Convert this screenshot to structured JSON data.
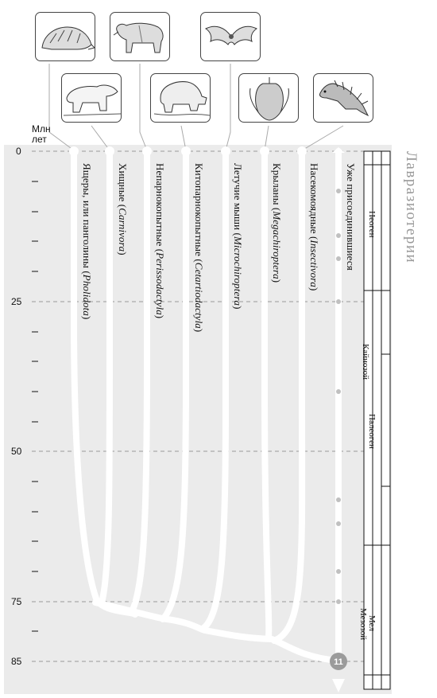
{
  "axis": {
    "title_line1": "Млн",
    "title_line2": "лет",
    "ticks": [
      "0",
      "25",
      "50",
      "75",
      "85"
    ]
  },
  "clade_title": "Лавразиотерии",
  "branches": [
    {
      "name": "Ящеры, или панголины",
      "latin": "Pholidota",
      "icon": "pangolin-icon"
    },
    {
      "name": "Хищные",
      "latin": "Carnivora",
      "icon": "polar-bear-icon"
    },
    {
      "name": "Непарнокопытные",
      "latin": "Perissodactyla",
      "icon": "tapir-icon"
    },
    {
      "name": "Китопарнокопытные",
      "latin": "Cetartiodactyla",
      "icon": "hippo-icon"
    },
    {
      "name": "Летучие мыши",
      "latin": "Microchiroptera",
      "icon": "bat-icon"
    },
    {
      "name": "Крыланы",
      "latin": "Megachiroptera",
      "icon": "fruit-bat-icon"
    },
    {
      "name": "Насекомоядные",
      "latin": "Insectivora",
      "icon": "hedgehog-icon"
    },
    {
      "name": "Уже присоединившиеся",
      "latin": "",
      "icon": ""
    }
  ],
  "node_label": "11",
  "time_scale": {
    "era": "Кайнозой",
    "periods": [
      "Неоген",
      "Палеоген",
      "Мел"
    ],
    "mesozoic": "Мезозой"
  },
  "colors": {
    "panel_background": "#ebebeb",
    "branches": "#ffffff",
    "node": "#9b9b9b",
    "clade_title": "#9a9a9a"
  }
}
